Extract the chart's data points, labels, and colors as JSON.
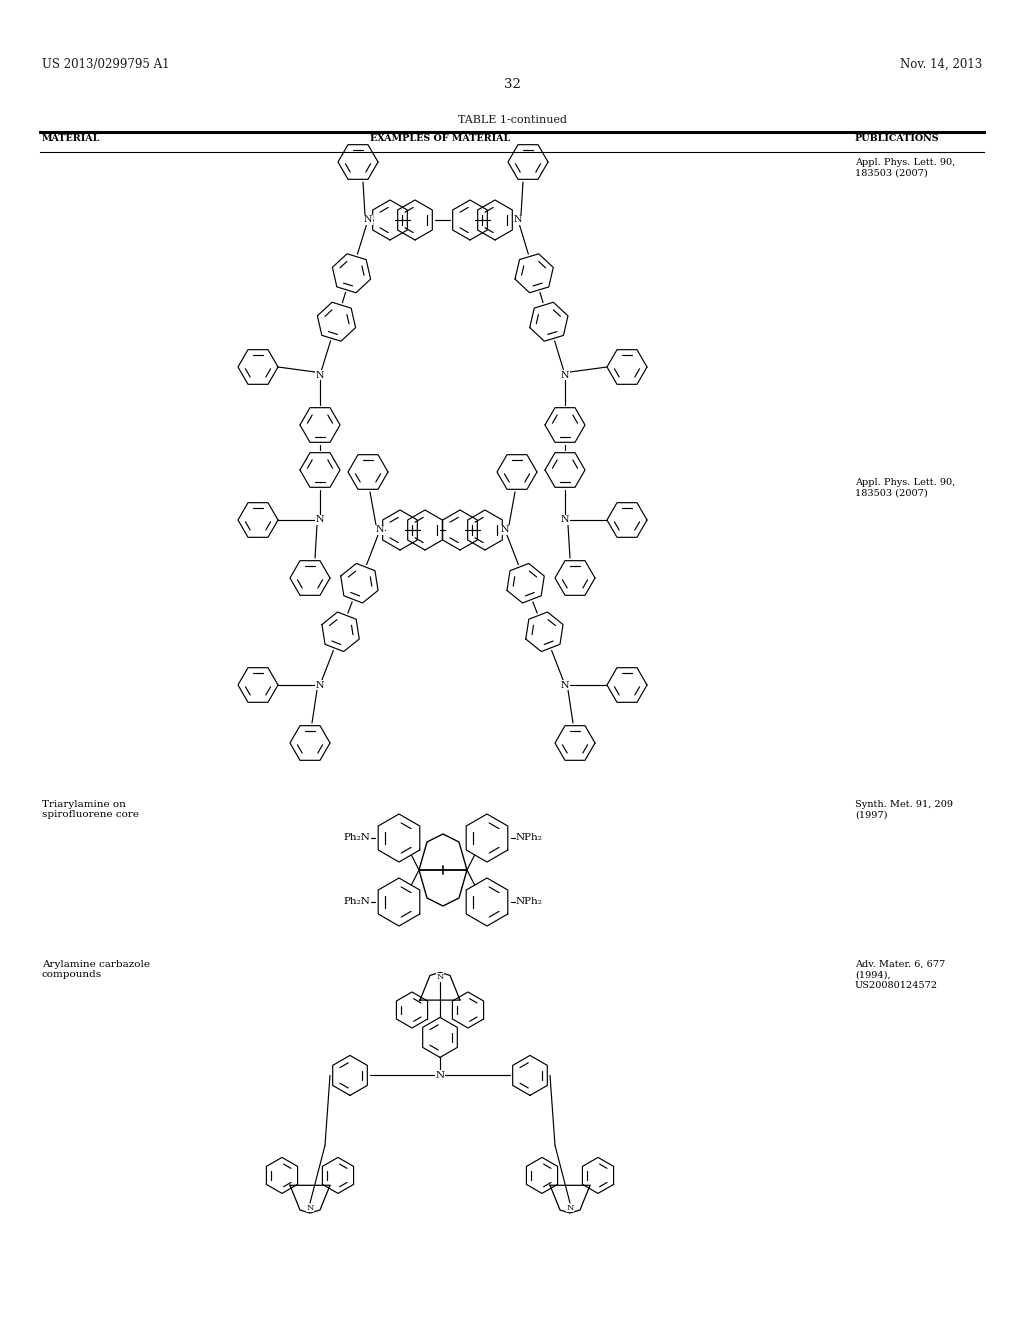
{
  "background_color": "#ffffff",
  "header_left": "US 2013/0299795 A1",
  "header_right": "Nov. 14, 2013",
  "page_number": "32",
  "table_title": "TABLE 1-continued",
  "col_headers": [
    "MATERIAL",
    "EXAMPLES OF MATERIAL",
    "PUBLICATIONS"
  ],
  "row1_pub": "Appl. Phys. Lett. 90,\n183503 (2007)",
  "row2_pub": "Appl. Phys. Lett. 90,\n183503 (2007)",
  "row3_pub": "Synth. Met. 91, 209\n(1997)",
  "row4_pub": "Adv. Mater. 6, 677\n(1994),\nUS20080124572",
  "row3_material": "Triarylamine on\nspirofluorene core",
  "row4_material": "Arylamine carbazole\ncompounds"
}
